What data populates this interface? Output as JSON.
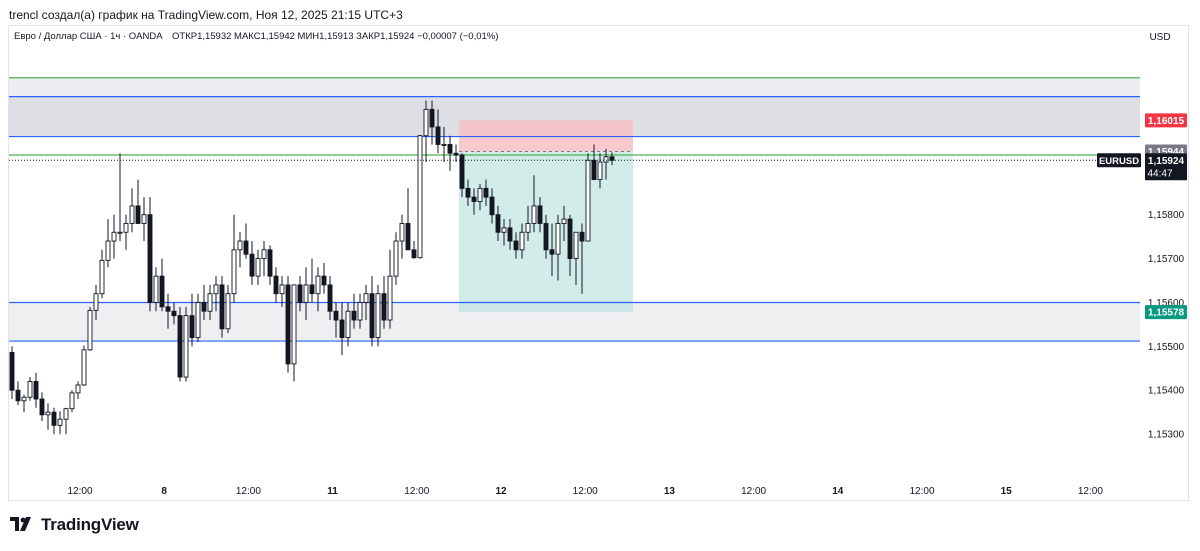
{
  "header": {
    "published_by": "trencl создал(а) график на TradingView.com, Ноя 12, 2025 21:15 UTC+3"
  },
  "legend": {
    "symbol_line": "Евро / Доллар США · 1ч · OANDA",
    "ohlc": "ОТКР1,15932  МАКС1,15942  МИН1,15913  ЗАКР1,15924  −0,00007 (−0,01%)"
  },
  "price_axis": {
    "currency": "USD",
    "ticks": [
      {
        "value": 1.159,
        "label": "1,15900"
      },
      {
        "value": 1.158,
        "label": "1,15800"
      },
      {
        "value": 1.157,
        "label": "1,15700"
      },
      {
        "value": 1.156,
        "label": "1,15600"
      },
      {
        "value": 1.155,
        "label": "1,15500"
      },
      {
        "value": 1.154,
        "label": "1,15400"
      },
      {
        "value": 1.153,
        "label": "1,15300"
      }
    ],
    "badges": [
      {
        "value": 1.16015,
        "label": "1,16015",
        "color": "#f23645"
      },
      {
        "value": 1.15944,
        "label": "1,15944",
        "color": "#787b86"
      },
      {
        "value": 1.15578,
        "label": "1,15578",
        "color": "#089981"
      }
    ],
    "last_price": {
      "value": 1.15924,
      "label": "1,15924",
      "symbol": "EURUSD",
      "countdown": "44:47"
    }
  },
  "time_axis": {
    "ticks": [
      {
        "label": "12:00",
        "bold": false
      },
      {
        "label": "8",
        "bold": true
      },
      {
        "label": "12:00",
        "bold": false
      },
      {
        "label": "11",
        "bold": true
      },
      {
        "label": "12:00",
        "bold": false
      },
      {
        "label": "12",
        "bold": true
      },
      {
        "label": "12:00",
        "bold": false
      },
      {
        "label": "13",
        "bold": true
      },
      {
        "label": "12:00",
        "bold": false
      },
      {
        "label": "14",
        "bold": true
      },
      {
        "label": "12:00",
        "bold": false
      },
      {
        "label": "15",
        "bold": true
      },
      {
        "label": "12:00",
        "bold": false
      }
    ]
  },
  "chart_data": {
    "type": "candlestick",
    "symbol": "EURUSD",
    "timeframe": "1h",
    "y_range": [
      1.152,
      1.1623
    ],
    "zones": [
      {
        "type": "supply",
        "from": 1.15978,
        "to": 1.16069,
        "color": "#d1d4dc"
      },
      {
        "type": "demand",
        "from": 1.15512,
        "to": 1.156,
        "color": "#e9eaed"
      }
    ],
    "horizontal_lines": [
      {
        "value": 1.16112,
        "color": "#4caf50"
      },
      {
        "value": 1.16069,
        "color": "#2962ff"
      },
      {
        "value": 1.15978,
        "color": "#2962ff"
      },
      {
        "value": 1.15936,
        "color": "#4caf50"
      },
      {
        "value": 1.156,
        "color": "#2962ff"
      },
      {
        "value": 1.15512,
        "color": "#2962ff"
      }
    ],
    "position": {
      "type": "short",
      "entry": 1.15944,
      "stop": 1.16015,
      "target": 1.15578,
      "start_bar": 75,
      "end_bar": 103,
      "profit_color": "#b2dfdb",
      "loss_color": "#f7c1c6"
    },
    "candles": [
      [
        1.15486,
        1.155,
        1.1538,
        1.154
      ],
      [
        1.154,
        1.1542,
        1.15366,
        1.15376
      ],
      [
        1.15376,
        1.1539,
        1.1535,
        1.15384
      ],
      [
        1.15384,
        1.1543,
        1.15376,
        1.1542
      ],
      [
        1.1542,
        1.1544,
        1.1536,
        1.1538
      ],
      [
        1.1538,
        1.15395,
        1.1533,
        1.15344
      ],
      [
        1.15344,
        1.1537,
        1.1531,
        1.1535
      ],
      [
        1.1535,
        1.1536,
        1.153,
        1.1532
      ],
      [
        1.1532,
        1.15352,
        1.153,
        1.15334
      ],
      [
        1.15334,
        1.1536,
        1.153,
        1.15358
      ],
      [
        1.15358,
        1.154,
        1.1535,
        1.15394
      ],
      [
        1.15394,
        1.1542,
        1.1538,
        1.15412
      ],
      [
        1.15412,
        1.15502,
        1.1541,
        1.15492
      ],
      [
        1.15492,
        1.1559,
        1.1549,
        1.15582
      ],
      [
        1.15582,
        1.1564,
        1.1556,
        1.1562
      ],
      [
        1.1562,
        1.1572,
        1.1561,
        1.15696
      ],
      [
        1.15696,
        1.1579,
        1.1568,
        1.1574
      ],
      [
        1.1574,
        1.158,
        1.157,
        1.1576
      ],
      [
        1.1576,
        1.1594,
        1.1574,
        1.1576
      ],
      [
        1.1576,
        1.158,
        1.1572,
        1.1578
      ],
      [
        1.1578,
        1.1586,
        1.1576,
        1.1582
      ],
      [
        1.1582,
        1.1588,
        1.1579,
        1.1578
      ],
      [
        1.1578,
        1.1584,
        1.1574,
        1.158
      ],
      [
        1.158,
        1.1584,
        1.1558,
        1.156
      ],
      [
        1.156,
        1.1568,
        1.1558,
        1.1566
      ],
      [
        1.1566,
        1.157,
        1.1558,
        1.1559
      ],
      [
        1.1559,
        1.1562,
        1.1554,
        1.1558
      ],
      [
        1.1558,
        1.156,
        1.1555,
        1.1557
      ],
      [
        1.1557,
        1.1559,
        1.1542,
        1.1543
      ],
      [
        1.1543,
        1.1559,
        1.1542,
        1.1557
      ],
      [
        1.1557,
        1.1562,
        1.155,
        1.1552
      ],
      [
        1.1552,
        1.1562,
        1.1551,
        1.156
      ],
      [
        1.156,
        1.1564,
        1.1556,
        1.1558
      ],
      [
        1.1558,
        1.1564,
        1.1556,
        1.1562
      ],
      [
        1.1562,
        1.1566,
        1.1558,
        1.1564
      ],
      [
        1.1564,
        1.1566,
        1.1552,
        1.1554
      ],
      [
        1.1554,
        1.1564,
        1.1553,
        1.1562
      ],
      [
        1.1562,
        1.158,
        1.156,
        1.1572
      ],
      [
        1.1572,
        1.1576,
        1.1568,
        1.1574
      ],
      [
        1.1574,
        1.1578,
        1.157,
        1.1571
      ],
      [
        1.1571,
        1.1574,
        1.1564,
        1.1566
      ],
      [
        1.1566,
        1.1572,
        1.1564,
        1.157
      ],
      [
        1.157,
        1.1574,
        1.1566,
        1.1572
      ],
      [
        1.1572,
        1.1573,
        1.1564,
        1.1566
      ],
      [
        1.1566,
        1.1568,
        1.156,
        1.1562
      ],
      [
        1.1562,
        1.1566,
        1.1559,
        1.1564
      ],
      [
        1.1564,
        1.1566,
        1.1544,
        1.1546
      ],
      [
        1.1546,
        1.1564,
        1.1542,
        1.1564
      ],
      [
        1.1564,
        1.1566,
        1.1558,
        1.156
      ],
      [
        1.156,
        1.1568,
        1.1556,
        1.1564
      ],
      [
        1.1564,
        1.157,
        1.156,
        1.1562
      ],
      [
        1.1562,
        1.1568,
        1.1558,
        1.1566
      ],
      [
        1.1566,
        1.1569,
        1.1562,
        1.1564
      ],
      [
        1.1564,
        1.1566,
        1.1556,
        1.1558
      ],
      [
        1.1558,
        1.156,
        1.1552,
        1.1556
      ],
      [
        1.1556,
        1.156,
        1.1548,
        1.1552
      ],
      [
        1.1552,
        1.156,
        1.155,
        1.1558
      ],
      [
        1.1558,
        1.1562,
        1.1554,
        1.1556
      ],
      [
        1.1556,
        1.1562,
        1.1554,
        1.156
      ],
      [
        1.156,
        1.1564,
        1.1556,
        1.1562
      ],
      [
        1.1562,
        1.1566,
        1.155,
        1.1552
      ],
      [
        1.1552,
        1.1564,
        1.155,
        1.1562
      ],
      [
        1.1562,
        1.1566,
        1.1554,
        1.1556
      ],
      [
        1.1556,
        1.1572,
        1.1554,
        1.1566
      ],
      [
        1.1566,
        1.1576,
        1.1564,
        1.1574
      ],
      [
        1.1574,
        1.158,
        1.157,
        1.1578
      ],
      [
        1.1578,
        1.1586,
        1.1572,
        1.1572
      ],
      [
        1.1572,
        1.1574,
        1.157,
        1.15702
      ],
      [
        1.15702,
        1.15982,
        1.157,
        1.1598
      ],
      [
        1.1598,
        1.1606,
        1.1592,
        1.1604
      ],
      [
        1.1604,
        1.1606,
        1.1596,
        1.16
      ],
      [
        1.16,
        1.1604,
        1.1594,
        1.1596
      ],
      [
        1.1596,
        1.16,
        1.1592,
        1.1596
      ],
      [
        1.1596,
        1.1598,
        1.159,
        1.1594
      ],
      [
        1.1594,
        1.1596,
        1.1592,
        1.15936
      ],
      [
        1.15936,
        1.1594,
        1.1584,
        1.1586
      ],
      [
        1.1586,
        1.1588,
        1.1582,
        1.1584
      ],
      [
        1.1584,
        1.1586,
        1.158,
        1.1583
      ],
      [
        1.1583,
        1.1587,
        1.1581,
        1.1586
      ],
      [
        1.1586,
        1.1588,
        1.1582,
        1.1584
      ],
      [
        1.1584,
        1.1586,
        1.1578,
        1.158
      ],
      [
        1.158,
        1.1582,
        1.1574,
        1.1576
      ],
      [
        1.1576,
        1.1579,
        1.1573,
        1.1577
      ],
      [
        1.1577,
        1.1579,
        1.1572,
        1.1574
      ],
      [
        1.1574,
        1.1576,
        1.157,
        1.1572
      ],
      [
        1.1572,
        1.1578,
        1.157,
        1.1576
      ],
      [
        1.1576,
        1.1582,
        1.1574,
        1.1578
      ],
      [
        1.1578,
        1.1589,
        1.1576,
        1.1582
      ],
      [
        1.1582,
        1.1584,
        1.1576,
        1.1578
      ],
      [
        1.1578,
        1.158,
        1.157,
        1.1572
      ],
      [
        1.1572,
        1.1578,
        1.1566,
        1.1571
      ],
      [
        1.1571,
        1.158,
        1.1565,
        1.1578
      ],
      [
        1.1578,
        1.1582,
        1.1574,
        1.1579
      ],
      [
        1.1579,
        1.158,
        1.1566,
        1.157
      ],
      [
        1.157,
        1.1576,
        1.1564,
        1.1576
      ],
      [
        1.1576,
        1.1578,
        1.1562,
        1.1574
      ],
      [
        1.1574,
        1.1594,
        1.1574,
        1.15924
      ],
      [
        1.15924,
        1.1596,
        1.1588,
        1.1588
      ],
      [
        1.1588,
        1.1594,
        1.1586,
        1.1592
      ],
      [
        1.1592,
        1.1595,
        1.1588,
        1.15932
      ],
      [
        1.15932,
        1.15942,
        1.15913,
        1.15924
      ]
    ]
  }
}
